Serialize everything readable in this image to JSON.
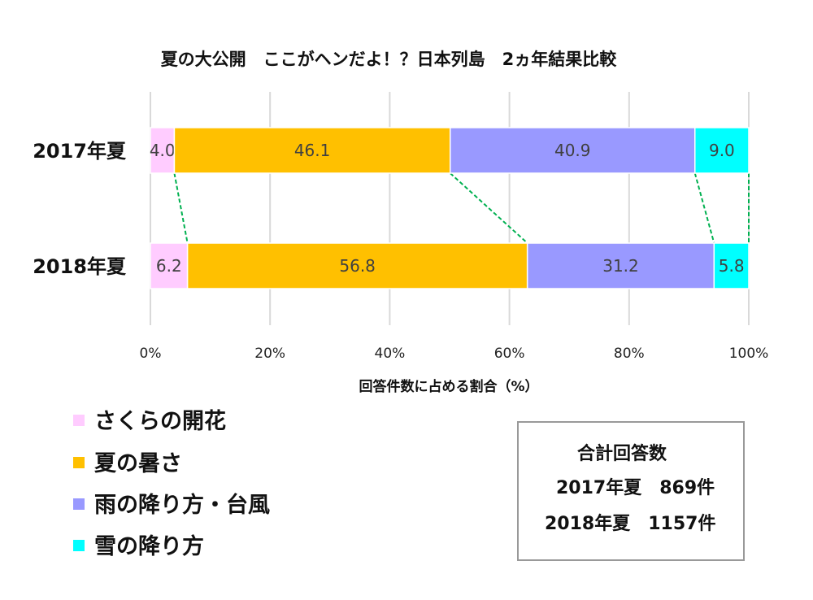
{
  "chart_data": {
    "type": "bar",
    "orientation": "horizontal",
    "stacked": "100%",
    "title": "夏の大公開　ここがヘンだよ！？日本列島　2ヵ年結果比較",
    "categories": [
      "2017年夏",
      "2018年夏"
    ],
    "series": [
      {
        "name": "さくらの開花",
        "color": "#FFCCFF",
        "values": [
          4.0,
          6.2
        ]
      },
      {
        "name": "夏の暑さ",
        "color": "#FFC000",
        "values": [
          46.1,
          56.8
        ]
      },
      {
        "name": "雨の降り方・台風",
        "color": "#9999FF",
        "values": [
          40.9,
          31.2
        ]
      },
      {
        "name": "雪の降り方",
        "color": "#00FFFF",
        "values": [
          9.0,
          5.8
        ]
      }
    ],
    "xlabel": "回答件数に占める割合（%）",
    "xlim": [
      0,
      100
    ],
    "xticks": [
      "0%",
      "20%",
      "40%",
      "60%",
      "80%",
      "100%"
    ],
    "grid": true,
    "series_lines": true,
    "series_line_color": "#00B050",
    "legend_position": "bottom-left"
  },
  "summary": {
    "title": "合計回答数",
    "rows": [
      "2017年夏　869件",
      "2018年夏　1157件"
    ]
  }
}
